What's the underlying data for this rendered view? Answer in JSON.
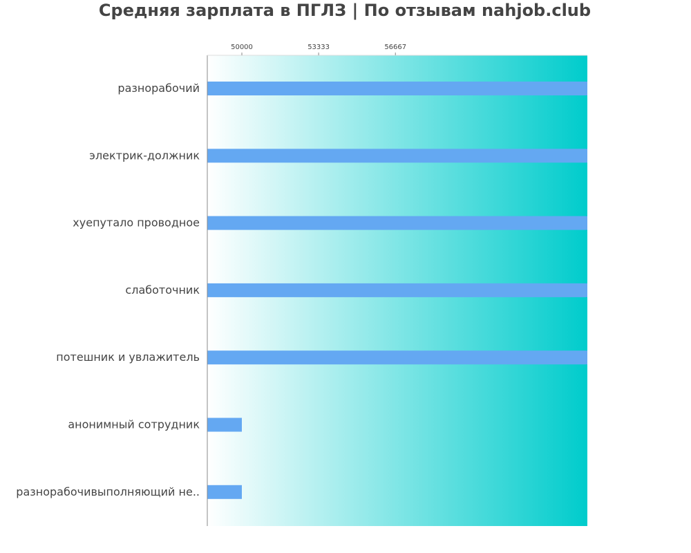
{
  "chart_data": {
    "type": "bar",
    "orientation": "horizontal",
    "title": "Средняя зарплата в ПГЛЗ | По отзывам nahjob.club",
    "xlabel": "",
    "ylabel": "",
    "xlim": [
      48500,
      65000
    ],
    "x_ticks": [
      50000,
      53333,
      56667
    ],
    "x_tick_labels": [
      "50000",
      "53333",
      "56667"
    ],
    "x_axis_position": "top",
    "grid": false,
    "categories": [
      "разнорабочий",
      "электрик-должник",
      "хуепутало проводное",
      "слаботочник",
      "потешник и увлажитель",
      "анонимный сотрудник",
      "разнорабочивыполняющий не.."
    ],
    "values": [
      65000,
      65000,
      65000,
      65000,
      65000,
      50000,
      50000
    ]
  },
  "colors": {
    "bar": "#64a8f2",
    "background_start": "#ffffff",
    "background_end": "#00cccc",
    "axis": "#888888",
    "text": "#444444"
  }
}
